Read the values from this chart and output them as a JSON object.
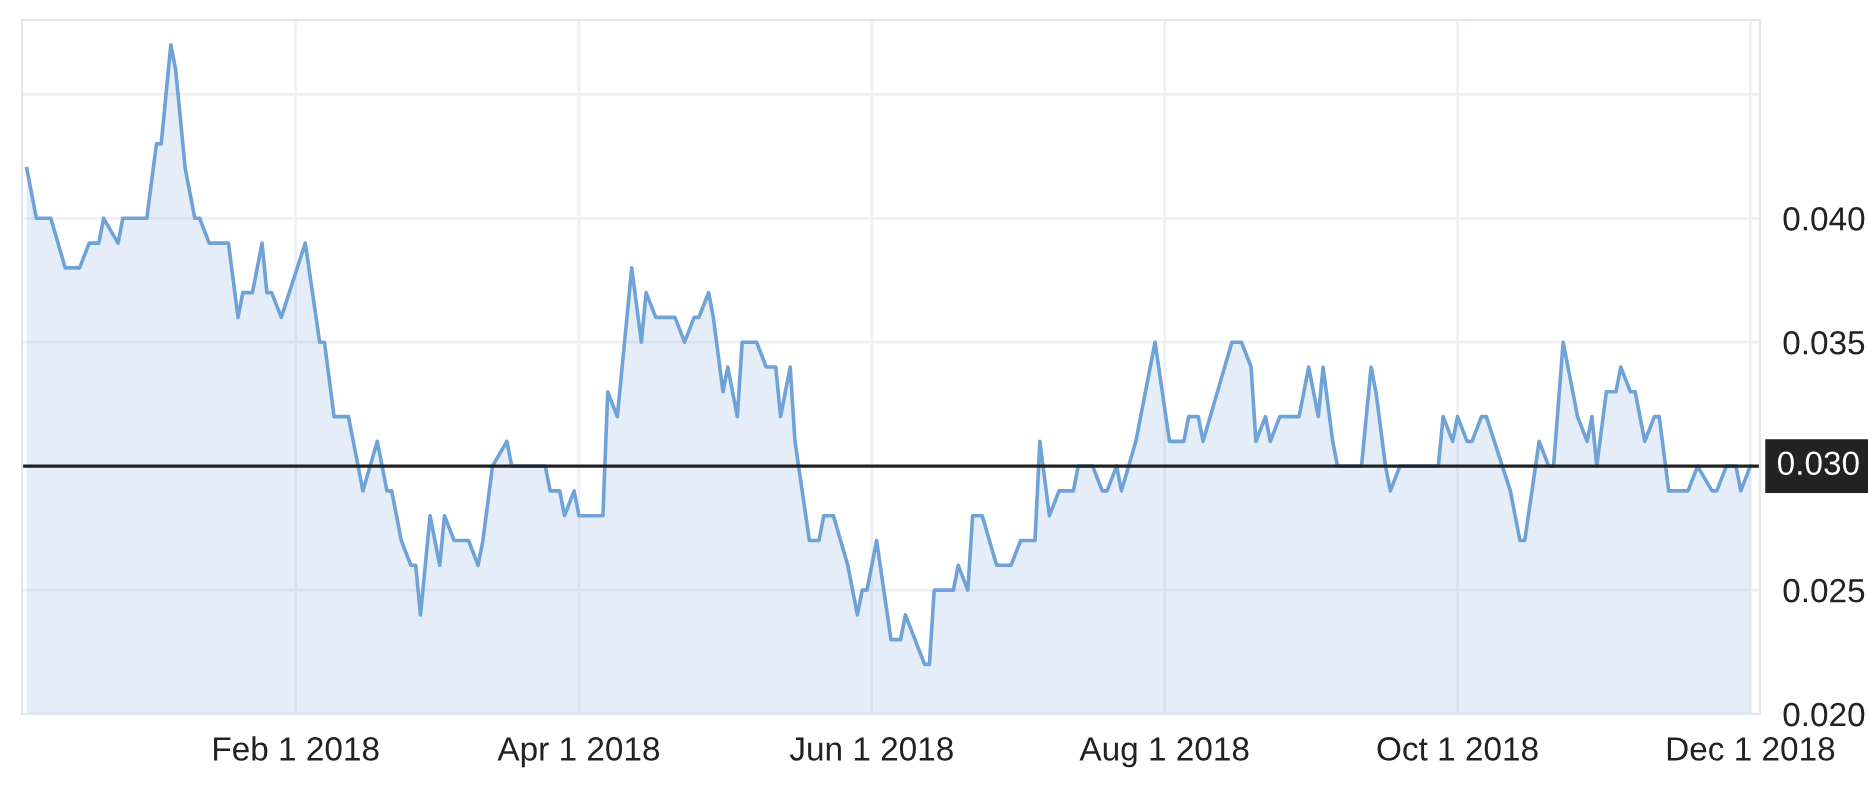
{
  "chart_data": {
    "type": "area",
    "x": [
      "2017-12-07",
      "2017-12-09",
      "2017-12-12",
      "2017-12-15",
      "2017-12-18",
      "2017-12-20",
      "2017-12-22",
      "2017-12-23",
      "2017-12-26",
      "2017-12-27",
      "2018-01-01",
      "2018-01-03",
      "2018-01-04",
      "2018-01-06",
      "2018-01-07",
      "2018-01-09",
      "2018-01-11",
      "2018-01-12",
      "2018-01-14",
      "2018-01-18",
      "2018-01-20",
      "2018-01-21",
      "2018-01-23",
      "2018-01-25",
      "2018-01-26",
      "2018-01-27",
      "2018-01-29",
      "2018-02-03",
      "2018-02-06",
      "2018-02-07",
      "2018-02-09",
      "2018-02-12",
      "2018-02-15",
      "2018-02-18",
      "2018-02-20",
      "2018-02-21",
      "2018-02-23",
      "2018-02-25",
      "2018-02-26",
      "2018-02-27",
      "2018-03-01",
      "2018-03-03",
      "2018-03-04",
      "2018-03-06",
      "2018-03-09",
      "2018-03-11",
      "2018-03-12",
      "2018-03-14",
      "2018-03-17",
      "2018-03-18",
      "2018-03-25",
      "2018-03-26",
      "2018-03-28",
      "2018-03-29",
      "2018-03-31",
      "2018-04-01",
      "2018-04-06",
      "2018-04-07",
      "2018-04-09",
      "2018-04-11",
      "2018-04-12",
      "2018-04-14",
      "2018-04-15",
      "2018-04-17",
      "2018-04-21",
      "2018-04-23",
      "2018-04-25",
      "2018-04-26",
      "2018-04-28",
      "2018-04-29",
      "2018-05-01",
      "2018-05-02",
      "2018-05-04",
      "2018-05-05",
      "2018-05-08",
      "2018-05-10",
      "2018-05-12",
      "2018-05-13",
      "2018-05-15",
      "2018-05-16",
      "2018-05-19",
      "2018-05-21",
      "2018-05-22",
      "2018-05-24",
      "2018-05-27",
      "2018-05-29",
      "2018-05-30",
      "2018-05-31",
      "2018-06-02",
      "2018-06-05",
      "2018-06-07",
      "2018-06-08",
      "2018-06-12",
      "2018-06-13",
      "2018-06-14",
      "2018-06-18",
      "2018-06-19",
      "2018-06-21",
      "2018-06-22",
      "2018-06-24",
      "2018-06-27",
      "2018-06-30",
      "2018-07-02",
      "2018-07-05",
      "2018-07-06",
      "2018-07-08",
      "2018-07-10",
      "2018-07-13",
      "2018-07-14",
      "2018-07-17",
      "2018-07-19",
      "2018-07-20",
      "2018-07-22",
      "2018-07-23",
      "2018-07-26",
      "2018-07-30",
      "2018-08-02",
      "2018-08-05",
      "2018-08-06",
      "2018-08-08",
      "2018-08-09",
      "2018-08-15",
      "2018-08-17",
      "2018-08-19",
      "2018-08-20",
      "2018-08-22",
      "2018-08-23",
      "2018-08-25",
      "2018-08-29",
      "2018-08-31",
      "2018-09-02",
      "2018-09-03",
      "2018-09-05",
      "2018-09-06",
      "2018-09-11",
      "2018-09-13",
      "2018-09-14",
      "2018-09-16",
      "2018-09-17",
      "2018-09-19",
      "2018-09-27",
      "2018-09-28",
      "2018-09-30",
      "2018-10-01",
      "2018-10-03",
      "2018-10-04",
      "2018-10-06",
      "2018-10-07",
      "2018-10-12",
      "2018-10-14",
      "2018-10-15",
      "2018-10-18",
      "2018-10-20",
      "2018-10-21",
      "2018-10-23",
      "2018-10-24",
      "2018-10-26",
      "2018-10-28",
      "2018-10-29",
      "2018-10-30",
      "2018-11-01",
      "2018-11-03",
      "2018-11-04",
      "2018-11-06",
      "2018-11-07",
      "2018-11-09",
      "2018-11-11",
      "2018-11-12",
      "2018-11-14",
      "2018-11-18",
      "2018-11-20",
      "2018-11-23",
      "2018-11-24",
      "2018-11-26",
      "2018-11-28",
      "2018-11-29",
      "2018-12-01"
    ],
    "series": [
      {
        "color": "#6fa3d8",
        "values": [
          0.042,
          0.04,
          0.04,
          0.038,
          0.038,
          0.039,
          0.039,
          0.04,
          0.039,
          0.04,
          0.04,
          0.043,
          0.043,
          0.047,
          0.046,
          0.042,
          0.04,
          0.04,
          0.039,
          0.039,
          0.036,
          0.037,
          0.037,
          0.039,
          0.037,
          0.037,
          0.036,
          0.039,
          0.035,
          0.035,
          0.032,
          0.032,
          0.029,
          0.031,
          0.029,
          0.029,
          0.027,
          0.026,
          0.026,
          0.024,
          0.028,
          0.026,
          0.028,
          0.027,
          0.027,
          0.026,
          0.027,
          0.03,
          0.031,
          0.03,
          0.03,
          0.029,
          0.029,
          0.028,
          0.029,
          0.028,
          0.028,
          0.033,
          0.032,
          0.036,
          0.038,
          0.035,
          0.037,
          0.036,
          0.036,
          0.035,
          0.036,
          0.036,
          0.037,
          0.036,
          0.033,
          0.034,
          0.032,
          0.035,
          0.035,
          0.034,
          0.034,
          0.032,
          0.034,
          0.031,
          0.027,
          0.027,
          0.028,
          0.028,
          0.026,
          0.024,
          0.025,
          0.025,
          0.027,
          0.023,
          0.023,
          0.024,
          0.022,
          0.022,
          0.025,
          0.025,
          0.026,
          0.025,
          0.028,
          0.028,
          0.026,
          0.026,
          0.027,
          0.027,
          0.031,
          0.028,
          0.029,
          0.029,
          0.03,
          0.03,
          0.029,
          0.029,
          0.03,
          0.029,
          0.031,
          0.035,
          0.031,
          0.031,
          0.032,
          0.032,
          0.031,
          0.035,
          0.035,
          0.034,
          0.031,
          0.032,
          0.031,
          0.032,
          0.032,
          0.034,
          0.032,
          0.034,
          0.031,
          0.03,
          0.03,
          0.034,
          0.033,
          0.03,
          0.029,
          0.03,
          0.03,
          0.032,
          0.031,
          0.032,
          0.031,
          0.031,
          0.032,
          0.032,
          0.029,
          0.027,
          0.027,
          0.031,
          0.03,
          0.03,
          0.035,
          0.034,
          0.032,
          0.031,
          0.032,
          0.03,
          0.033,
          0.033,
          0.034,
          0.033,
          0.033,
          0.031,
          0.032,
          0.032,
          0.029,
          0.029,
          0.03,
          0.029,
          0.029,
          0.03,
          0.03,
          0.029,
          0.03
        ]
      }
    ],
    "xlim": [
      "2017-12-06",
      "2018-12-03"
    ],
    "xticks": [
      {
        "value": "2018-02-01",
        "label": "Feb 1 2018"
      },
      {
        "value": "2018-04-01",
        "label": "Apr 1 2018"
      },
      {
        "value": "2018-06-01",
        "label": "Jun 1 2018"
      },
      {
        "value": "2018-08-01",
        "label": "Aug 1 2018"
      },
      {
        "value": "2018-10-01",
        "label": "Oct 1 2018"
      },
      {
        "value": "2018-12-01",
        "label": "Dec 1 2018"
      }
    ],
    "ylim": [
      0.02,
      0.048
    ],
    "yticks": [
      {
        "value": 0.02,
        "label": "0.020"
      },
      {
        "value": 0.025,
        "label": "0.025"
      },
      {
        "value": 0.035,
        "label": "0.035"
      },
      {
        "value": 0.04,
        "label": "0.040"
      },
      {
        "value": 0.045,
        "label": null
      }
    ],
    "ref_lines": [
      {
        "axis": "y",
        "value": 0.03,
        "label": "0.030",
        "color": "#222222"
      }
    ],
    "grid": true
  }
}
